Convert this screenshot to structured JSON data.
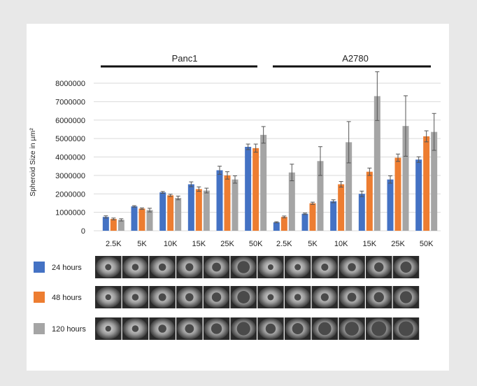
{
  "chart_data": {
    "type": "bar",
    "groups": [
      {
        "name": "Panc1",
        "categories": [
          "2.5K",
          "5K",
          "10K",
          "15K",
          "25K",
          "50K"
        ]
      },
      {
        "name": "A2780",
        "categories": [
          "2.5K",
          "5K",
          "10K",
          "15K",
          "25K",
          "50K"
        ]
      }
    ],
    "series": [
      {
        "name": "24 hours",
        "color": "#4472c4",
        "values": [
          750000,
          1320000,
          2080000,
          2520000,
          3280000,
          4550000,
          460000,
          920000,
          1600000,
          2000000,
          2780000,
          3860000
        ],
        "errors": [
          60000,
          40000,
          50000,
          130000,
          220000,
          150000,
          30000,
          40000,
          80000,
          150000,
          200000,
          150000
        ]
      },
      {
        "name": "48 hours",
        "color": "#ed7d31",
        "values": [
          640000,
          1200000,
          1920000,
          2260000,
          3000000,
          4480000,
          750000,
          1490000,
          2520000,
          3200000,
          3960000,
          5120000
        ],
        "errors": [
          50000,
          40000,
          60000,
          120000,
          200000,
          220000,
          50000,
          60000,
          150000,
          200000,
          200000,
          300000
        ]
      },
      {
        "name": "120 hours",
        "color": "#a5a5a5",
        "values": [
          590000,
          1120000,
          1780000,
          2180000,
          2780000,
          5200000,
          3160000,
          3780000,
          4800000,
          7300000,
          5680000,
          5360000
        ],
        "errors": [
          60000,
          100000,
          100000,
          130000,
          200000,
          450000,
          450000,
          780000,
          1120000,
          1320000,
          1640000,
          1000000
        ]
      }
    ],
    "ylabel": "Spheroid Size in µm²",
    "yticks": [
      0,
      1000000,
      2000000,
      3000000,
      4000000,
      5000000,
      6000000,
      7000000,
      8000000
    ],
    "ytick_labels": [
      "0",
      "1000000",
      "2000000",
      "3000000",
      "4000000",
      "5000000",
      "6000000",
      "7000000",
      "8000000"
    ],
    "ylim": [
      0,
      8000000
    ],
    "grid": true,
    "legend_position": "left of image rows"
  },
  "image_rows": [
    {
      "label": "24 hours",
      "color": "#4472c4",
      "sizes": [
        0.28,
        0.3,
        0.33,
        0.35,
        0.4,
        0.55,
        0.25,
        0.28,
        0.32,
        0.36,
        0.42,
        0.5
      ]
    },
    {
      "label": "48 hours",
      "color": "#ed7d31",
      "sizes": [
        0.26,
        0.3,
        0.34,
        0.36,
        0.42,
        0.56,
        0.28,
        0.3,
        0.35,
        0.4,
        0.45,
        0.54
      ]
    },
    {
      "label": "120 hours",
      "color": "#a5a5a5",
      "sizes": [
        0.26,
        0.3,
        0.36,
        0.4,
        0.48,
        0.6,
        0.45,
        0.5,
        0.58,
        0.62,
        0.66,
        0.66
      ]
    }
  ]
}
